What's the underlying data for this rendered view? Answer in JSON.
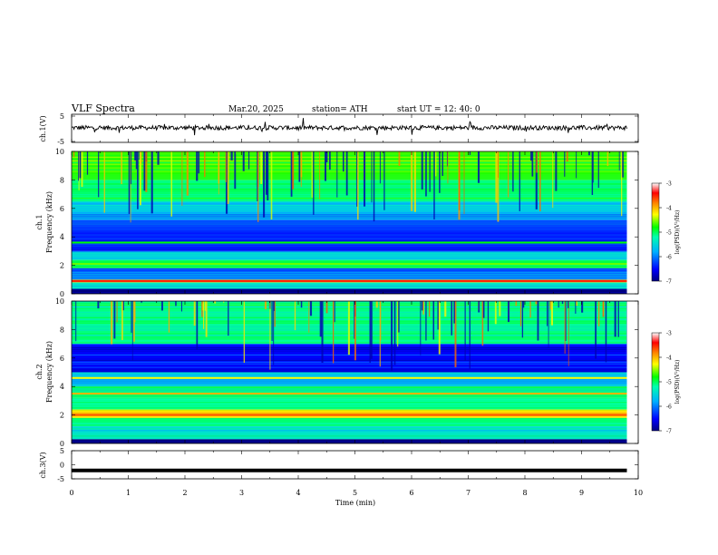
{
  "header": {
    "title": "VLF  Spectra",
    "date": "Mar.20, 2025",
    "station": "station= ATH",
    "start_ut": "start  UT  =    12: 40: 0"
  },
  "colors": {
    "axis": "#000000",
    "trace": "#000000",
    "colormap": [
      "#000080",
      "#0000ff",
      "#00b0ff",
      "#00ffb0",
      "#00ff00",
      "#ffff00",
      "#ff8000",
      "#ff0000",
      "#ffffff"
    ]
  },
  "chart_data": [
    {
      "type": "line",
      "panel": "ch1-waveform",
      "ylabel": "ch.1(V)",
      "ylim": [
        -5,
        5
      ],
      "yticks": [
        "5",
        "-5"
      ],
      "xlim": [
        0,
        10
      ],
      "x_end_min": 9.8,
      "description_values": {
        "baseline_v": 0.2,
        "amplitude_v": 0.8
      },
      "series": [
        {
          "values_x_min": [
            0,
            9.8
          ],
          "values_v": [
            0.2,
            0.2
          ]
        }
      ]
    },
    {
      "type": "heatmap",
      "panel": "ch1-spectrogram",
      "ylabel": "ch.1\nFrequency (kHz)",
      "ylabel_top": "ch.1",
      "ylabel_bottom": "Frequency (kHz)",
      "ylim": [
        0,
        10
      ],
      "yticks": [
        "0",
        "2",
        "4",
        "6",
        "8",
        "10"
      ],
      "xlim": [
        0,
        10
      ],
      "x_end_min": 9.8,
      "colorbar": {
        "label": "log(PSD)(V²/Hz)",
        "range": [
          -7,
          -3
        ],
        "ticks": [
          "-3",
          "-4",
          "-5",
          "-6",
          "-7"
        ]
      },
      "bands": [
        {
          "f_from": 0.0,
          "f_to": 0.35,
          "log_psd": -7.0
        },
        {
          "f_from": 0.35,
          "f_to": 0.8,
          "log_psd": -5.6
        },
        {
          "f_from": 0.8,
          "f_to": 1.0,
          "log_psd": -4.2
        },
        {
          "f_from": 1.0,
          "f_to": 1.8,
          "log_psd": -6.2
        },
        {
          "f_from": 1.8,
          "f_to": 2.4,
          "log_psd": -5.2
        },
        {
          "f_from": 2.4,
          "f_to": 3.0,
          "log_psd": -5.8
        },
        {
          "f_from": 3.0,
          "f_to": 5.2,
          "log_psd": -6.4
        },
        {
          "f_from": 5.2,
          "f_to": 6.5,
          "log_psd": -5.9
        },
        {
          "f_from": 6.5,
          "f_to": 8.0,
          "log_psd": -5.3
        },
        {
          "f_from": 8.0,
          "f_to": 10.0,
          "log_psd": -4.9
        }
      ],
      "lines": [
        {
          "f": 0.9,
          "log_psd": -3.6
        },
        {
          "f": 2.1,
          "log_psd": -4.8
        },
        {
          "f": 3.6,
          "log_psd": -5.0
        }
      ],
      "spherics_log_psd": -6.8
    },
    {
      "type": "heatmap",
      "panel": "ch2-spectrogram",
      "ylabel": "ch.2\nFrequency (kHz)",
      "ylabel_top": "ch.2",
      "ylabel_bottom": "Frequency (kHz)",
      "ylim": [
        0,
        10
      ],
      "yticks": [
        "0",
        "2",
        "4",
        "6",
        "8",
        "10"
      ],
      "xlim": [
        0,
        10
      ],
      "x_end_min": 9.8,
      "colorbar": {
        "label": "log(PSD)(V²/Hz)",
        "range": [
          -7,
          -3
        ],
        "ticks": [
          "-3",
          "-4",
          "-5",
          "-6",
          "-7"
        ]
      },
      "bands": [
        {
          "f_from": 0.0,
          "f_to": 0.3,
          "log_psd": -7.0
        },
        {
          "f_from": 0.3,
          "f_to": 1.2,
          "log_psd": -5.7
        },
        {
          "f_from": 1.2,
          "f_to": 1.8,
          "log_psd": -5.4
        },
        {
          "f_from": 1.8,
          "f_to": 2.4,
          "log_psd": -4.4
        },
        {
          "f_from": 2.4,
          "f_to": 3.2,
          "log_psd": -5.5
        },
        {
          "f_from": 3.2,
          "f_to": 4.0,
          "log_psd": -5.3
        },
        {
          "f_from": 4.0,
          "f_to": 5.0,
          "log_psd": -5.9
        },
        {
          "f_from": 5.0,
          "f_to": 7.0,
          "log_psd": -6.5
        },
        {
          "f_from": 7.0,
          "f_to": 10.0,
          "log_psd": -5.4
        }
      ],
      "lines": [
        {
          "f": 2.0,
          "log_psd": -3.8
        },
        {
          "f": 3.5,
          "log_psd": -4.2
        },
        {
          "f": 4.6,
          "log_psd": -4.5
        }
      ],
      "spherics_log_psd": -6.8
    },
    {
      "type": "line",
      "panel": "ch3-waveform",
      "ylabel": "ch.3(V)",
      "ylim": [
        -5,
        5
      ],
      "yticks": [
        "5",
        "0",
        "-5"
      ],
      "xlim": [
        0,
        10
      ],
      "x_end_min": 9.8,
      "xticks": [
        "0",
        "1",
        "2",
        "3",
        "4",
        "5",
        "6",
        "7",
        "8",
        "9",
        "10"
      ],
      "xlabel": "Time  (min)",
      "series": [
        {
          "values_x_min": [
            0,
            9.8
          ],
          "values_v": [
            -2.0,
            -2.0
          ]
        }
      ]
    }
  ]
}
